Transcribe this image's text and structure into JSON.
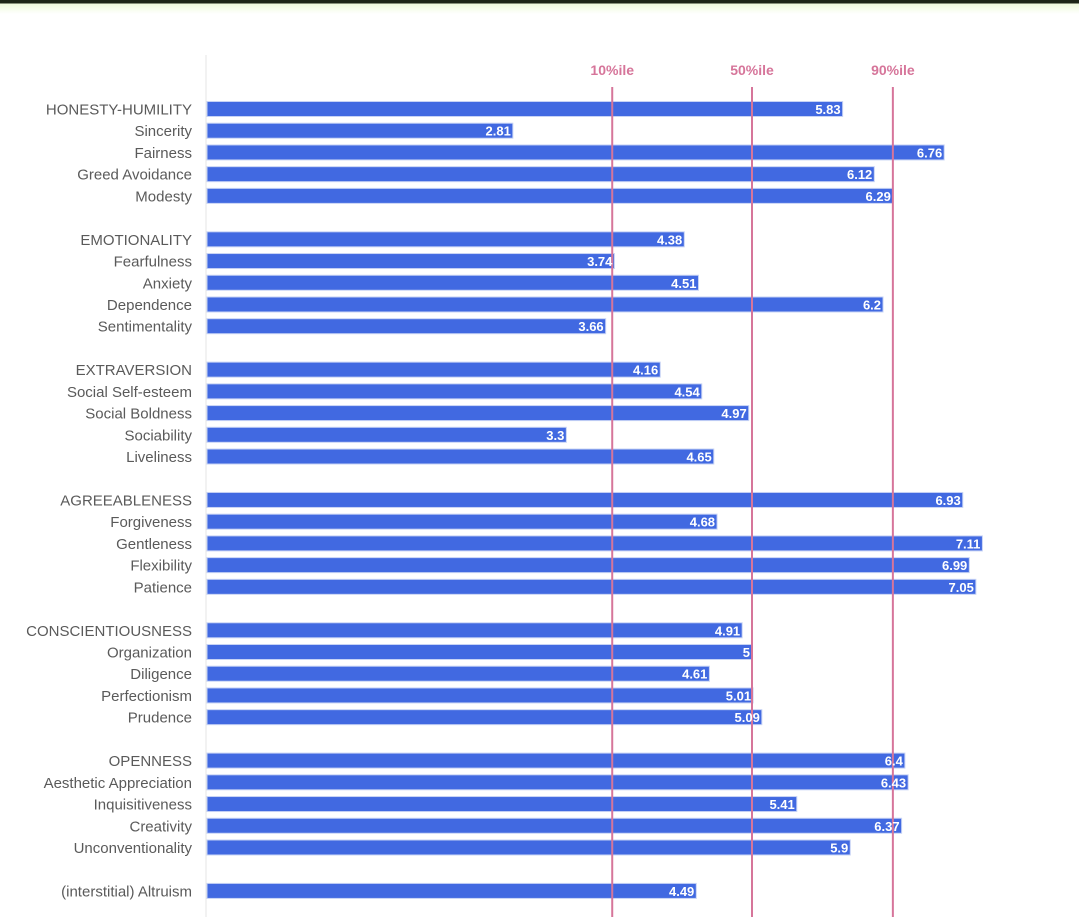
{
  "chart_data": {
    "type": "bar",
    "orientation": "horizontal",
    "title": "",
    "xlabel": "",
    "ylabel": "",
    "xlim": [
      0,
      8
    ],
    "grid": false,
    "bar_color": "#4169e1",
    "reference_line_color": "#d6759a",
    "reference_lines": [
      {
        "label": "10%ile",
        "value": 3.72
      },
      {
        "label": "50%ile",
        "value": 5.0
      },
      {
        "label": "90%ile",
        "value": 6.29
      }
    ],
    "groups": [
      {
        "name": "HONESTY-HUMILITY",
        "value": 5.83,
        "facets": [
          {
            "name": "Sincerity",
            "value": 2.81
          },
          {
            "name": "Fairness",
            "value": 6.76
          },
          {
            "name": "Greed Avoidance",
            "value": 6.12
          },
          {
            "name": "Modesty",
            "value": 6.29
          }
        ]
      },
      {
        "name": "EMOTIONALITY",
        "value": 4.38,
        "facets": [
          {
            "name": "Fearfulness",
            "value": 3.74
          },
          {
            "name": "Anxiety",
            "value": 4.51
          },
          {
            "name": "Dependence",
            "value": 6.2
          },
          {
            "name": "Sentimentality",
            "value": 3.66
          }
        ]
      },
      {
        "name": "EXTRAVERSION",
        "value": 4.16,
        "facets": [
          {
            "name": "Social Self-esteem",
            "value": 4.54
          },
          {
            "name": "Social Boldness",
            "value": 4.97
          },
          {
            "name": "Sociability",
            "value": 3.3
          },
          {
            "name": "Liveliness",
            "value": 4.65
          }
        ]
      },
      {
        "name": "AGREEABLENESS",
        "value": 6.93,
        "facets": [
          {
            "name": "Forgiveness",
            "value": 4.68
          },
          {
            "name": "Gentleness",
            "value": 7.11
          },
          {
            "name": "Flexibility",
            "value": 6.99
          },
          {
            "name": "Patience",
            "value": 7.05
          }
        ]
      },
      {
        "name": "CONSCIENTIOUSNESS",
        "value": 4.91,
        "facets": [
          {
            "name": "Organization",
            "value": 5
          },
          {
            "name": "Diligence",
            "value": 4.61
          },
          {
            "name": "Perfectionism",
            "value": 5.01
          },
          {
            "name": "Prudence",
            "value": 5.09
          }
        ]
      },
      {
        "name": "OPENNESS",
        "value": 6.4,
        "facets": [
          {
            "name": "Aesthetic Appreciation",
            "value": 6.43
          },
          {
            "name": "Inquisitiveness",
            "value": 5.41
          },
          {
            "name": "Creativity",
            "value": 6.37
          },
          {
            "name": "Unconventionality",
            "value": 5.9
          }
        ]
      },
      {
        "name": "(interstitial) Altruism",
        "value": 4.49,
        "facets": []
      }
    ]
  }
}
